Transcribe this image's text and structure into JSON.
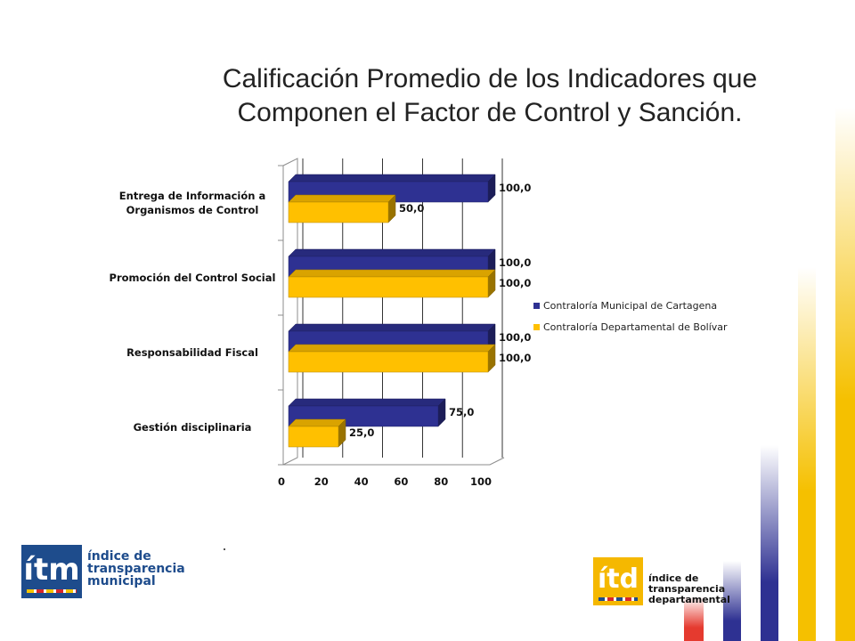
{
  "title": {
    "line1": "Calificación Promedio de los Indicadores que",
    "line2": "Componen el Factor de Control y Sanción."
  },
  "chart_data": {
    "type": "bar",
    "orientation": "horizontal",
    "style": "3d",
    "categories": [
      [
        "Entrega de Información a",
        "Organismos de Control"
      ],
      [
        "Promoción del Control Social"
      ],
      [
        "Responsabilidad Fiscal"
      ],
      [
        "Gestión disciplinaria"
      ]
    ],
    "series": [
      {
        "name": "Contraloría Municipal de Cartagena",
        "color": "#2e3192",
        "values": [
          100,
          100,
          100,
          75
        ],
        "labels": [
          "100,0",
          "100,0",
          "100,0",
          "75,0"
        ]
      },
      {
        "name": "Contraloría Departamental de Bolívar",
        "color": "#ffc000",
        "values": [
          50,
          100,
          100,
          25
        ],
        "labels": [
          "50,0",
          "100,0",
          "100,0",
          "25,0"
        ]
      }
    ],
    "xlim": [
      0,
      100
    ],
    "xticks": [
      "0",
      "20",
      "40",
      "60",
      "80",
      "100"
    ],
    "grid": true,
    "legend": "right"
  },
  "logos": {
    "itm": {
      "mark": "ítm",
      "line1": "índice de",
      "line2": "transparencia",
      "line3": "municipal",
      "color": "#1e4c8c"
    },
    "itd": {
      "mark": "ítd",
      "line1": "índice de",
      "line2": "transparencia",
      "line3": "departamental",
      "color": "#f5b800"
    }
  },
  "colors": {
    "stripe_yellow": "#f5c000",
    "stripe_blue": "#2e3192",
    "stripe_red": "#e53a2f"
  }
}
